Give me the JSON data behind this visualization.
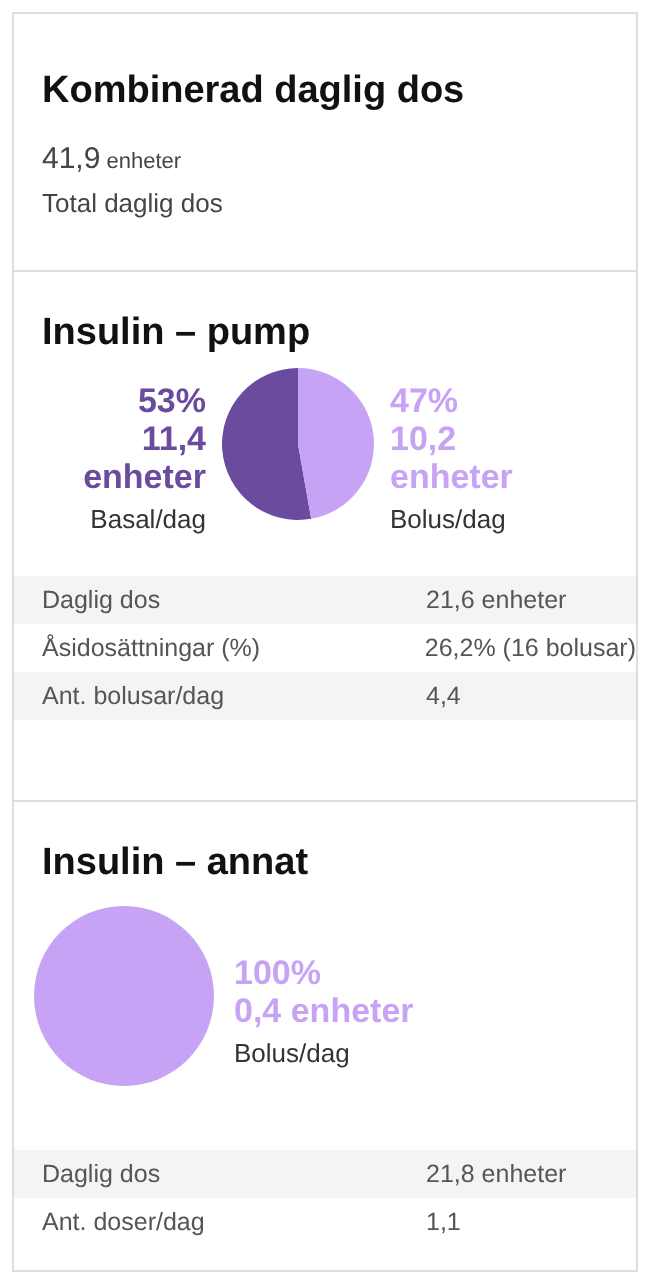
{
  "chart_data": [
    {
      "type": "other",
      "title": "Kombinerad daglig dos",
      "annotations": [
        "41,9 enheter",
        "Total daglig dos"
      ]
    },
    {
      "type": "pie",
      "title": "Insulin – pump",
      "categories": [
        "Basal/dag",
        "Bolus/dag"
      ],
      "values": [
        11.4,
        10.2
      ],
      "colors": [
        "#6b4b9e",
        "#c7a3f5"
      ],
      "value_labels": [
        "53%\n11,4\nenheter",
        "47%\n10,2\nenheter"
      ],
      "annotations": [
        "Daglig dos",
        "21,6 enheter",
        "Åsidosättningar (%)",
        "26,2% (16 bolusar)",
        "Ant. bolusar/dag",
        "4,4"
      ]
    },
    {
      "type": "pie",
      "title": "Insulin – annat",
      "categories": [
        "Bolus/dag"
      ],
      "values": [
        0.4
      ],
      "colors": [
        "#c7a3f5"
      ],
      "value_labels": [
        "100%\n0,4 enheter"
      ],
      "annotations": [
        "Daglig dos",
        "21,8 enheter",
        "Ant. doser/dag",
        "1,1"
      ]
    }
  ]
}
